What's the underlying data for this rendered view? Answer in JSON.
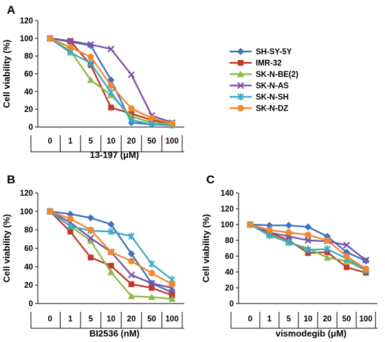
{
  "colors": {
    "SH-SY-5Y": "#3f72c2",
    "IMR-32": "#c0392b",
    "SK-N-BE(2)": "#8cb84a",
    "SK-N-AS": "#7a52a8",
    "SK-N-SH": "#3aaac6",
    "SK-N-DZ": "#f08a30"
  },
  "legend": {
    "items": [
      "SH-SY-5Y",
      "IMR-32",
      "SK-N-BE(2)",
      "SK-N-AS",
      "SK-N-SH",
      "SK-N-DZ"
    ]
  },
  "chart_data": [
    {
      "type": "line",
      "panel": "A",
      "xlabel": "13-197 (μM)",
      "ylabel": "Cell viability (%)",
      "ylim": [
        0,
        120
      ],
      "yticks": [
        0,
        20,
        40,
        60,
        80,
        100,
        120
      ],
      "categories": [
        "0",
        "1",
        "5",
        "10",
        "20",
        "50",
        "100"
      ],
      "series": [
        {
          "name": "SH-SY-5Y",
          "marker": "diamond",
          "values": [
            100,
            96,
            92,
            53,
            5,
            3,
            2
          ]
        },
        {
          "name": "IMR-32",
          "marker": "square",
          "values": [
            100,
            97,
            70,
            22,
            15,
            8,
            3
          ]
        },
        {
          "name": "SK-N-BE(2)",
          "marker": "triangle",
          "values": [
            100,
            86,
            53,
            36,
            12,
            5,
            3
          ]
        },
        {
          "name": "SK-N-AS",
          "marker": "x",
          "values": [
            100,
            97,
            93,
            88,
            59,
            13,
            5
          ]
        },
        {
          "name": "SK-N-SH",
          "marker": "star",
          "values": [
            100,
            84,
            72,
            39,
            8,
            3,
            2
          ]
        },
        {
          "name": "SK-N-DZ",
          "marker": "circle",
          "values": [
            100,
            90,
            79,
            47,
            21,
            10,
            4
          ]
        }
      ]
    },
    {
      "type": "line",
      "panel": "B",
      "xlabel": "BI2536 (nM)",
      "ylabel": "Cell viability (%)",
      "ylim": [
        0,
        120
      ],
      "yticks": [
        0,
        20,
        40,
        60,
        80,
        100,
        120
      ],
      "categories": [
        "0",
        "1",
        "5",
        "10",
        "20",
        "50",
        "100"
      ],
      "series": [
        {
          "name": "SH-SY-5Y",
          "marker": "diamond",
          "values": [
            100,
            97,
            93,
            86,
            54,
            22,
            12
          ]
        },
        {
          "name": "IMR-32",
          "marker": "square",
          "values": [
            100,
            78,
            50,
            41,
            21,
            17,
            9
          ]
        },
        {
          "name": "SK-N-BE(2)",
          "marker": "triangle",
          "values": [
            100,
            84,
            68,
            34,
            8,
            7,
            5
          ]
        },
        {
          "name": "SK-N-AS",
          "marker": "x",
          "values": [
            100,
            88,
            71,
            56,
            31,
            22,
            17
          ]
        },
        {
          "name": "SK-N-SH",
          "marker": "star",
          "values": [
            100,
            84,
            79,
            78,
            73,
            43,
            26
          ]
        },
        {
          "name": "SK-N-DZ",
          "marker": "circle",
          "values": [
            100,
            92,
            80,
            56,
            46,
            33,
            21
          ]
        }
      ]
    },
    {
      "type": "line",
      "panel": "C",
      "xlabel": "vismodegib (μM)",
      "ylabel": "Cell viability (%)",
      "ylim": [
        0,
        140
      ],
      "yticks": [
        0,
        20,
        40,
        60,
        80,
        100,
        120,
        140
      ],
      "categories": [
        "0",
        "1",
        "5",
        "10",
        "20",
        "50",
        "100"
      ],
      "series": [
        {
          "name": "SH-SY-5Y",
          "marker": "diamond",
          "values": [
            100,
            99,
            99,
            97,
            85,
            65,
            54
          ]
        },
        {
          "name": "IMR-32",
          "marker": "square",
          "values": [
            100,
            90,
            80,
            64,
            65,
            46,
            39
          ]
        },
        {
          "name": "SK-N-BE(2)",
          "marker": "triangle",
          "values": [
            100,
            88,
            77,
            70,
            58,
            54,
            42
          ]
        },
        {
          "name": "SK-N-AS",
          "marker": "x",
          "values": [
            100,
            90,
            85,
            80,
            79,
            74,
            55
          ]
        },
        {
          "name": "SK-N-SH",
          "marker": "star",
          "values": [
            100,
            86,
            78,
            68,
            69,
            57,
            42
          ]
        },
        {
          "name": "SK-N-DZ",
          "marker": "circle",
          "values": [
            100,
            93,
            90,
            87,
            80,
            60,
            44
          ]
        }
      ]
    }
  ]
}
